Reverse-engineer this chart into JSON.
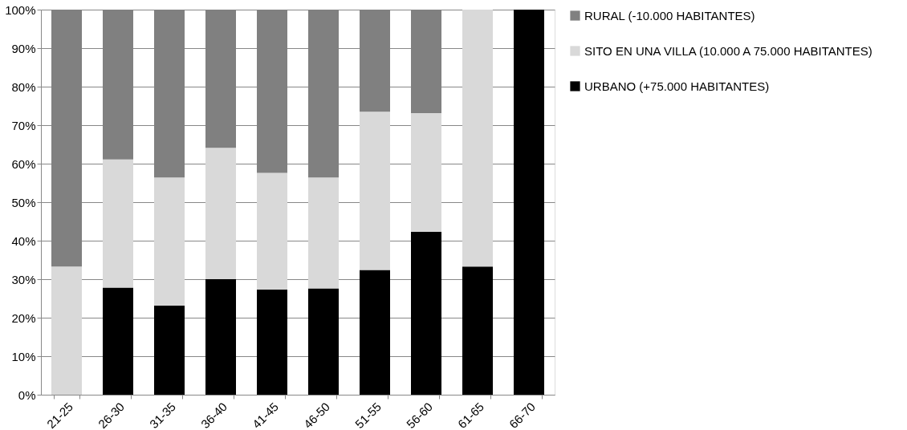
{
  "chart_data": {
    "type": "bar",
    "stacked": true,
    "categories": [
      "21-25",
      "26-30",
      "31-35",
      "36-40",
      "41-45",
      "46-50",
      "51-55",
      "56-60",
      "61-65",
      "66-70"
    ],
    "series": [
      {
        "name": "URBANO (+75.000 HABITANTES)",
        "color": "#000000",
        "values": [
          0,
          27.8,
          23.1,
          30,
          27.3,
          27.6,
          32.4,
          42.3,
          33.3,
          100
        ]
      },
      {
        "name": "SITO EN UNA VILLA (10.000 A 75.000 HABITANTES)",
        "color": "#d9d9d9",
        "values": [
          33.3,
          33.3,
          33.3,
          34.1,
          30.3,
          28.8,
          41.1,
          30.8,
          66.7,
          0
        ]
      },
      {
        "name": "RURAL (-10.000 HABITANTES)",
        "color": "#808080",
        "values": [
          66.7,
          38.9,
          43.6,
          35.9,
          42.4,
          43.6,
          26.5,
          26.9,
          0,
          0
        ]
      }
    ],
    "ylim": [
      0,
      100
    ],
    "yticks": [
      {
        "value": 0,
        "label": "0%"
      },
      {
        "value": 10,
        "label": "10%"
      },
      {
        "value": 20,
        "label": "20%"
      },
      {
        "value": 30,
        "label": "30%"
      },
      {
        "value": 40,
        "label": "40%"
      },
      {
        "value": 50,
        "label": "50%"
      },
      {
        "value": 60,
        "label": "60%"
      },
      {
        "value": 70,
        "label": "70%"
      },
      {
        "value": 80,
        "label": "80%"
      },
      {
        "value": 90,
        "label": "90%"
      },
      {
        "value": 100,
        "label": "100%"
      }
    ],
    "grid": "y",
    "legend": "right"
  }
}
